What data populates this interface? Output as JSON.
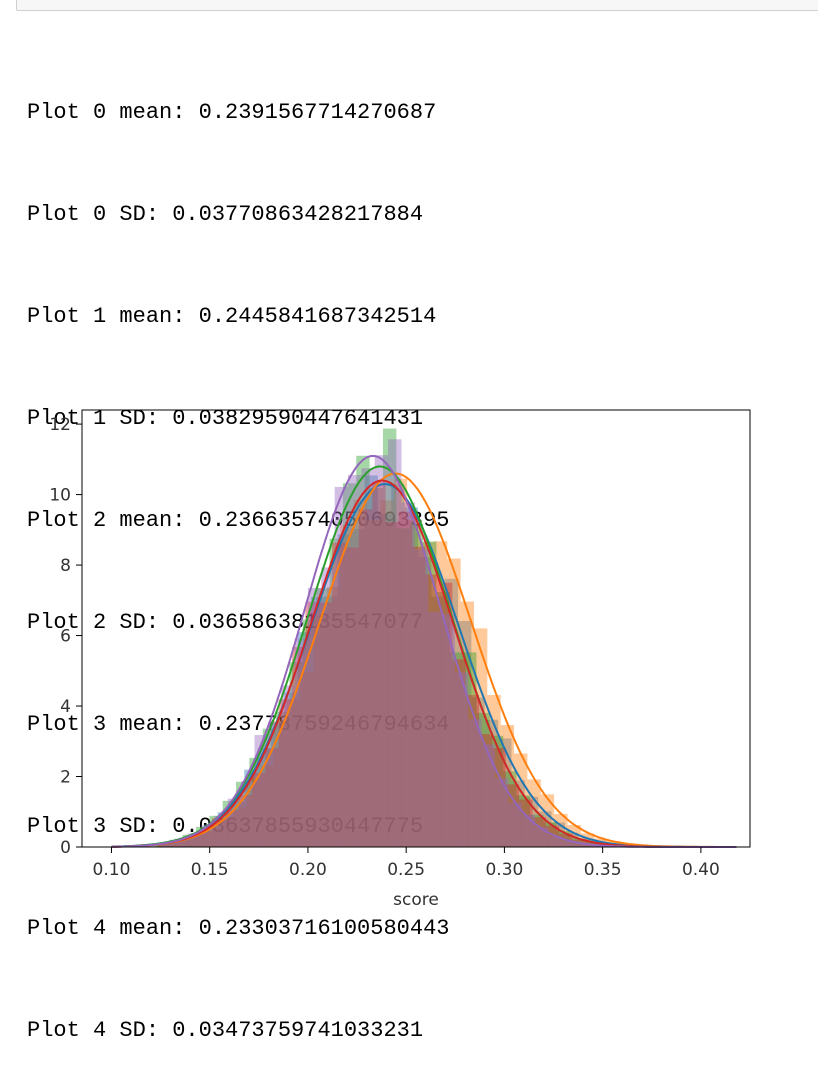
{
  "stream_output": {
    "lines": [
      "Plot 0 mean: 0.2391567714270687",
      "Plot 0 SD: 0.03770863428217884",
      "Plot 1 mean: 0.2445841687342514",
      "Plot 1 SD: 0.03829590447641431",
      "Plot 2 mean: 0.23663574050693395",
      "Plot 2 SD: 0.03658638135547077",
      "Plot 3 mean: 0.23778759246794634",
      "Plot 3 SD: 0.03637855930447775",
      "Plot 4 mean: 0.23303716100580443",
      "Plot 4 SD: 0.03473759741033231"
    ]
  },
  "chart_data": {
    "type": "area",
    "title": "",
    "xlabel": "score",
    "ylabel": "",
    "xlim": [
      0.085,
      0.425
    ],
    "ylim": [
      0,
      12.4
    ],
    "xticks": [
      "0.10",
      "0.15",
      "0.20",
      "0.25",
      "0.30",
      "0.35",
      "0.40"
    ],
    "yticks": [
      "0",
      "2",
      "4",
      "6",
      "8",
      "10",
      "12"
    ],
    "grid": false,
    "legend": "none",
    "series": [
      {
        "color": "#1f77b4",
        "mean": 0.2391567714270687,
        "sd": 0.03770863428217884,
        "peak": 10.3
      },
      {
        "color": "#ff7f0e",
        "mean": 0.2445841687342514,
        "sd": 0.03829590447641431,
        "peak": 10.6
      },
      {
        "color": "#2ca02c",
        "mean": 0.23663574050693395,
        "sd": 0.03658638135547077,
        "peak": 10.8
      },
      {
        "color": "#d62728",
        "mean": 0.23778759246794634,
        "sd": 0.03637855930447775,
        "peak": 10.4
      },
      {
        "color": "#9467bd",
        "mean": 0.23303716100580443,
        "sd": 0.03473759741033231,
        "peak": 11.1
      }
    ]
  }
}
